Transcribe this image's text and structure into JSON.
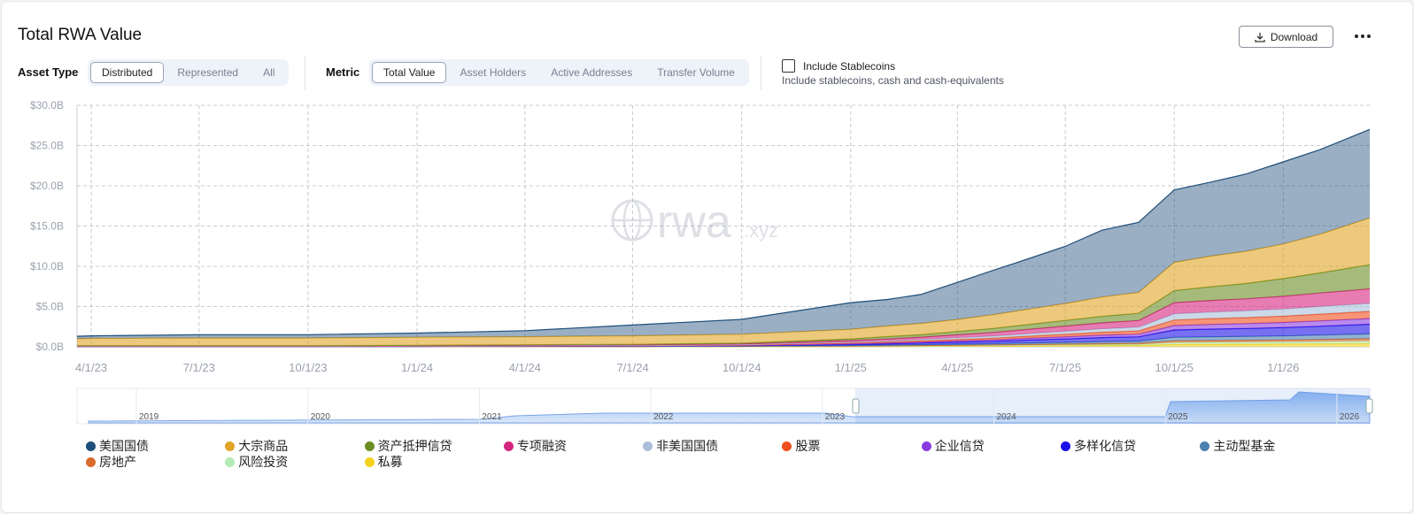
{
  "header": {
    "title": "Total RWA Value",
    "download": "Download"
  },
  "filters": {
    "asset_type": {
      "label": "Asset Type",
      "options": [
        "Distributed",
        "Represented",
        "All"
      ],
      "selected": 0
    },
    "metric": {
      "label": "Metric",
      "options": [
        "Total Value",
        "Asset Holders",
        "Active Addresses",
        "Transfer Volume"
      ],
      "selected": 0
    },
    "stablecoins": {
      "label": "Include Stablecoins",
      "note": "Include stablecoins, cash and cash-equivalents",
      "checked": false
    }
  },
  "chart_data": {
    "type": "stacked_area",
    "watermark": {
      "main": "rwa",
      "suffix": ".xyz"
    },
    "x": [
      "3/20/23",
      "4/1/23",
      "7/1/23",
      "10/1/23",
      "1/1/24",
      "4/1/24",
      "7/1/24",
      "10/1/24",
      "1/1/25",
      "2/1/25",
      "3/1/25",
      "4/1/25",
      "5/1/25",
      "6/1/25",
      "7/1/25",
      "8/1/25",
      "9/1/25",
      "10/1/25",
      "11/1/25",
      "12/1/25",
      "1/1/26",
      "2/1/26",
      "3/15/26"
    ],
    "xlim": [
      "3/20/23",
      "3/15/26"
    ],
    "xticks": [
      "4/1/23",
      "7/1/23",
      "10/1/23",
      "1/1/24",
      "4/1/24",
      "7/1/24",
      "10/1/24",
      "1/1/25",
      "4/1/25",
      "7/1/25",
      "10/1/25",
      "1/1/26"
    ],
    "ylim": [
      0,
      30
    ],
    "yticks": [
      {
        "value": 0,
        "label": "$0.0B"
      },
      {
        "value": 5,
        "label": "$5.0B"
      },
      {
        "value": 10,
        "label": "$10.0B"
      },
      {
        "value": 15,
        "label": "$15.0B"
      },
      {
        "value": 20,
        "label": "$20.0B"
      },
      {
        "value": 25,
        "label": "$25.0B"
      },
      {
        "value": 30,
        "label": "$30.0B"
      }
    ],
    "grid": true,
    "series": [
      {
        "name": "美国国债",
        "color": "#1e4e79",
        "values": [
          0.32,
          0.32,
          0.42,
          0.42,
          0.51,
          0.75,
          1.34,
          1.85,
          3.3,
          3.3,
          3.6,
          4.6,
          5.5,
          6.3,
          7.1,
          8.3,
          8.7,
          9.0,
          9.2,
          9.6,
          10.2,
          10.5,
          11.0
        ]
      },
      {
        "name": "大宗商品",
        "color": "#e0a526",
        "values": [
          0.85,
          0.9,
          0.95,
          0.95,
          1.0,
          1.0,
          1.05,
          1.1,
          1.2,
          1.3,
          1.4,
          1.5,
          1.7,
          1.9,
          2.1,
          2.4,
          2.6,
          3.5,
          3.8,
          4.0,
          4.3,
          4.8,
          5.8
        ]
      },
      {
        "name": "资产抵押信贷",
        "color": "#6b8e23",
        "values": [
          0.03,
          0.03,
          0.03,
          0.03,
          0.04,
          0.05,
          0.06,
          0.1,
          0.2,
          0.3,
          0.3,
          0.4,
          0.5,
          0.6,
          0.7,
          0.8,
          0.9,
          1.5,
          1.7,
          1.9,
          2.2,
          2.5,
          3.0
        ]
      },
      {
        "name": "专项融资",
        "color": "#d6257f",
        "values": [
          0.03,
          0.03,
          0.03,
          0.03,
          0.04,
          0.05,
          0.06,
          0.09,
          0.2,
          0.25,
          0.3,
          0.38,
          0.45,
          0.55,
          0.65,
          0.75,
          0.82,
          1.38,
          1.45,
          1.5,
          1.58,
          1.68,
          1.8
        ]
      },
      {
        "name": "非美国国债",
        "color": "#a9bfd8",
        "values": [
          0.01,
          0.01,
          0.01,
          0.01,
          0.02,
          0.03,
          0.04,
          0.05,
          0.11,
          0.14,
          0.17,
          0.21,
          0.25,
          0.31,
          0.36,
          0.42,
          0.46,
          0.77,
          0.81,
          0.84,
          0.88,
          0.94,
          1.0
        ]
      },
      {
        "name": "股票",
        "color": "#f04e1c",
        "values": [
          0.01,
          0.01,
          0.01,
          0.01,
          0.02,
          0.02,
          0.03,
          0.04,
          0.1,
          0.12,
          0.15,
          0.19,
          0.22,
          0.27,
          0.32,
          0.37,
          0.41,
          0.69,
          0.72,
          0.75,
          0.79,
          0.84,
          0.9
        ]
      },
      {
        "name": "企业信贷",
        "color": "#8a3ce0",
        "values": [
          0.01,
          0.01,
          0.01,
          0.01,
          0.01,
          0.02,
          0.02,
          0.03,
          0.08,
          0.1,
          0.12,
          0.15,
          0.18,
          0.22,
          0.26,
          0.3,
          0.33,
          0.55,
          0.58,
          0.6,
          0.63,
          0.67,
          0.7
        ]
      },
      {
        "name": "多样化信贷",
        "color": "#1c10e8",
        "values": [
          0.01,
          0.01,
          0.01,
          0.01,
          0.02,
          0.03,
          0.04,
          0.06,
          0.13,
          0.16,
          0.2,
          0.25,
          0.3,
          0.36,
          0.43,
          0.5,
          0.54,
          0.91,
          0.96,
          0.99,
          1.04,
          1.1,
          1.2
        ]
      },
      {
        "name": "主动型基金",
        "color": "#4a7fb0",
        "values": [
          0.01,
          0.01,
          0.01,
          0.01,
          0.01,
          0.02,
          0.02,
          0.03,
          0.06,
          0.08,
          0.1,
          0.12,
          0.14,
          0.18,
          0.21,
          0.24,
          0.26,
          0.44,
          0.46,
          0.48,
          0.5,
          0.54,
          0.6
        ]
      },
      {
        "name": "房地产",
        "color": "#d8692a",
        "values": [
          0.01,
          0.01,
          0.01,
          0.01,
          0.01,
          0.01,
          0.01,
          0.02,
          0.03,
          0.04,
          0.05,
          0.06,
          0.07,
          0.09,
          0.1,
          0.12,
          0.13,
          0.22,
          0.23,
          0.24,
          0.25,
          0.27,
          0.3
        ]
      },
      {
        "name": "风险投资",
        "color": "#b5ecb5",
        "values": [
          0.01,
          0.01,
          0.01,
          0.01,
          0.01,
          0.01,
          0.01,
          0.02,
          0.03,
          0.04,
          0.05,
          0.06,
          0.07,
          0.09,
          0.1,
          0.12,
          0.13,
          0.22,
          0.23,
          0.24,
          0.25,
          0.27,
          0.3
        ]
      },
      {
        "name": "私募",
        "color": "#f2d21b",
        "values": [
          0.01,
          0.01,
          0.01,
          0.01,
          0.01,
          0.01,
          0.02,
          0.02,
          0.04,
          0.05,
          0.06,
          0.08,
          0.1,
          0.12,
          0.14,
          0.16,
          0.18,
          0.3,
          0.32,
          0.33,
          0.35,
          0.37,
          0.4
        ]
      }
    ]
  },
  "navigator": {
    "years": [
      "2019",
      "2020",
      "2021",
      "2022",
      "2023",
      "2024",
      "2025",
      "2026"
    ]
  }
}
